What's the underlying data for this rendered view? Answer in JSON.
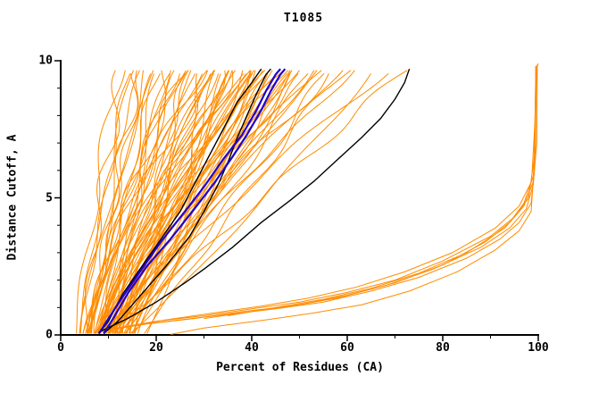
{
  "chart_data": {
    "type": "line",
    "title": "T1085",
    "xlabel": "Percent of Residues (CA)",
    "ylabel": "Distance Cutoff, A",
    "xlim": [
      0,
      100
    ],
    "ylim": [
      0,
      10
    ],
    "grid": false,
    "legend": "none",
    "x_tick_values": [
      0,
      20,
      40,
      60,
      80,
      100
    ],
    "x_tick_labels": [
      "0",
      "20",
      "40",
      "60",
      "80",
      "100"
    ],
    "y_tick_values": [
      0,
      5,
      10
    ],
    "y_tick_labels": [
      "0",
      "5",
      "10"
    ],
    "colors": {
      "predictions": "#ff8c00",
      "reference": "#000000",
      "highlight": "#2200cc",
      "axis": "#000000"
    },
    "orange_param_curves": [
      [
        4,
        14,
        1.0
      ],
      [
        5,
        16,
        0.9
      ],
      [
        6,
        18,
        1.1
      ],
      [
        4,
        20,
        1.3
      ],
      [
        7,
        22,
        0.8
      ],
      [
        5,
        24,
        1.2
      ],
      [
        8,
        25,
        1.0
      ],
      [
        6,
        26,
        1.4
      ],
      [
        9,
        27,
        0.9
      ],
      [
        5,
        28,
        1.1
      ],
      [
        7,
        29,
        1.3
      ],
      [
        10,
        30,
        0.8
      ],
      [
        6,
        30,
        1.5
      ],
      [
        8,
        31,
        1.0
      ],
      [
        11,
        32,
        1.2
      ],
      [
        7,
        32,
        0.9
      ],
      [
        9,
        33,
        1.4
      ],
      [
        12,
        34,
        1.0
      ],
      [
        6,
        34,
        1.6
      ],
      [
        8,
        35,
        1.1
      ],
      [
        10,
        35,
        0.85
      ],
      [
        13,
        36,
        1.25
      ],
      [
        7,
        36,
        1.0
      ],
      [
        9,
        37,
        1.45
      ],
      [
        11,
        37,
        0.9
      ],
      [
        14,
        38,
        1.15
      ],
      [
        8,
        38,
        1.3
      ],
      [
        10,
        39,
        1.0
      ],
      [
        12,
        39,
        0.8
      ],
      [
        6,
        40,
        1.5
      ],
      [
        9,
        40,
        1.1
      ],
      [
        11,
        41,
        1.35
      ],
      [
        13,
        41,
        0.95
      ],
      [
        7,
        42,
        1.2
      ],
      [
        10,
        42,
        1.0
      ],
      [
        15,
        43,
        0.85
      ],
      [
        8,
        43,
        1.4
      ],
      [
        12,
        44,
        1.1
      ],
      [
        9,
        44,
        1.6
      ],
      [
        11,
        45,
        0.9
      ],
      [
        14,
        45,
        1.2
      ],
      [
        7,
        46,
        1.05
      ],
      [
        10,
        46,
        1.35
      ],
      [
        12,
        47,
        0.95
      ],
      [
        8,
        47,
        1.25
      ],
      [
        16,
        48,
        1.1
      ],
      [
        9,
        48,
        0.8
      ],
      [
        11,
        49,
        1.45
      ],
      [
        13,
        50,
        1.0
      ],
      [
        10,
        50,
        1.3
      ],
      [
        8,
        51,
        1.15
      ],
      [
        12,
        52,
        0.9
      ],
      [
        15,
        53,
        1.25
      ],
      [
        9,
        54,
        1.05
      ],
      [
        11,
        55,
        1.4
      ],
      [
        13,
        56,
        0.95
      ],
      [
        10,
        57,
        1.2
      ],
      [
        17,
        58,
        1.0
      ],
      [
        12,
        60,
        1.3
      ],
      [
        9,
        62,
        1.1
      ],
      [
        14,
        65,
        0.9
      ],
      [
        11,
        68,
        1.2
      ],
      [
        10,
        72,
        1.0
      ],
      [
        3,
        12,
        1.1
      ],
      [
        4,
        17,
        1.4
      ],
      [
        5,
        21,
        0.75
      ],
      [
        6,
        23,
        1.2
      ],
      [
        18,
        40,
        1.0
      ],
      [
        16,
        36,
        1.3
      ],
      [
        15,
        33,
        0.9
      ],
      [
        14,
        30,
        1.1
      ],
      [
        13,
        28,
        1.5
      ],
      [
        12,
        26,
        0.85
      ],
      [
        11,
        24,
        1.2
      ],
      [
        10,
        22,
        1.0
      ],
      [
        9,
        20,
        1.35
      ],
      [
        8,
        19,
        0.95
      ],
      [
        7,
        17,
        1.15
      ],
      [
        6,
        15,
        1.0
      ],
      [
        5,
        13,
        1.25
      ]
    ],
    "orange_point_curves": [
      [
        [
          8,
          0.1
        ],
        [
          15,
          0.35
        ],
        [
          25,
          0.55
        ],
        [
          35,
          0.75
        ],
        [
          45,
          0.95
        ],
        [
          55,
          1.2
        ],
        [
          65,
          1.6
        ],
        [
          75,
          2.1
        ],
        [
          85,
          2.8
        ],
        [
          92,
          3.5
        ],
        [
          96,
          4.1
        ],
        [
          98.5,
          4.8
        ],
        [
          99.2,
          6.0
        ],
        [
          99.4,
          8.0
        ],
        [
          99.5,
          9.8
        ]
      ],
      [
        [
          9,
          0.15
        ],
        [
          18,
          0.4
        ],
        [
          28,
          0.6
        ],
        [
          38,
          0.85
        ],
        [
          48,
          1.05
        ],
        [
          58,
          1.35
        ],
        [
          68,
          1.8
        ],
        [
          78,
          2.4
        ],
        [
          88,
          3.2
        ],
        [
          94,
          3.9
        ],
        [
          97.5,
          4.6
        ],
        [
          99,
          5.5
        ],
        [
          99.3,
          7.5
        ],
        [
          99.5,
          9.8
        ]
      ],
      [
        [
          10,
          0.2
        ],
        [
          20,
          0.5
        ],
        [
          30,
          0.7
        ],
        [
          40,
          0.95
        ],
        [
          50,
          1.2
        ],
        [
          60,
          1.55
        ],
        [
          70,
          2.0
        ],
        [
          80,
          2.7
        ],
        [
          90,
          3.6
        ],
        [
          95,
          4.3
        ],
        [
          98,
          5.0
        ],
        [
          99.2,
          6.5
        ],
        [
          99.5,
          9.8
        ]
      ],
      [
        [
          12,
          0.25
        ],
        [
          22,
          0.55
        ],
        [
          32,
          0.8
        ],
        [
          42,
          1.05
        ],
        [
          52,
          1.35
        ],
        [
          62,
          1.75
        ],
        [
          72,
          2.3
        ],
        [
          82,
          3.0
        ],
        [
          91,
          3.9
        ],
        [
          96,
          4.7
        ],
        [
          98.6,
          5.6
        ],
        [
          99.3,
          7.8
        ],
        [
          99.6,
          9.8
        ]
      ],
      [
        [
          23,
          0.02
        ],
        [
          30,
          0.25
        ],
        [
          43,
          0.55
        ],
        [
          53,
          0.8
        ],
        [
          63,
          1.1
        ],
        [
          73,
          1.6
        ],
        [
          83,
          2.3
        ],
        [
          91,
          3.1
        ],
        [
          96,
          3.8
        ],
        [
          98.5,
          4.5
        ],
        [
          99.4,
          6.8
        ],
        [
          99.6,
          9.8
        ]
      ],
      [
        [
          30,
          0.6
        ],
        [
          40,
          0.85
        ],
        [
          50,
          1.1
        ],
        [
          60,
          1.45
        ],
        [
          70,
          1.9
        ],
        [
          80,
          2.55
        ],
        [
          89,
          3.4
        ],
        [
          94,
          4.1
        ],
        [
          97,
          4.8
        ],
        [
          99,
          5.8
        ],
        [
          99.5,
          8.5
        ],
        [
          99.7,
          9.85
        ]
      ],
      [
        [
          35,
          0.7
        ],
        [
          45,
          1.0
        ],
        [
          55,
          1.3
        ],
        [
          65,
          1.7
        ],
        [
          75,
          2.25
        ],
        [
          85,
          3.0
        ],
        [
          93,
          3.9
        ],
        [
          97,
          4.7
        ],
        [
          99,
          5.6
        ],
        [
          99.7,
          7.0
        ],
        [
          99.8,
          9.8
        ],
        [
          100,
          9.9
        ]
      ]
    ],
    "black_curves": [
      [
        [
          8,
          0.05
        ],
        [
          10,
          0.5
        ],
        [
          13,
          1.5
        ],
        [
          17,
          2.5
        ],
        [
          21,
          3.5
        ],
        [
          25,
          4.5
        ],
        [
          28,
          5.5
        ],
        [
          31,
          6.5
        ],
        [
          34,
          7.5
        ],
        [
          37,
          8.5
        ],
        [
          40,
          9.2
        ],
        [
          42,
          9.7
        ]
      ],
      [
        [
          9,
          0.05
        ],
        [
          12,
          0.5
        ],
        [
          16,
          1.3
        ],
        [
          22,
          2.5
        ],
        [
          27,
          3.6
        ],
        [
          30,
          4.5
        ],
        [
          33,
          5.5
        ],
        [
          35,
          6.3
        ],
        [
          37,
          7.2
        ],
        [
          39,
          8.0
        ],
        [
          41,
          8.8
        ],
        [
          43,
          9.5
        ],
        [
          44,
          9.7
        ]
      ],
      [
        [
          8,
          0.1
        ],
        [
          14,
          0.6
        ],
        [
          20,
          1.2
        ],
        [
          26,
          1.9
        ],
        [
          30,
          2.4
        ],
        [
          36,
          3.2
        ],
        [
          42,
          4.1
        ],
        [
          48,
          4.9
        ],
        [
          53,
          5.6
        ],
        [
          58,
          6.4
        ],
        [
          63,
          7.2
        ],
        [
          67,
          7.9
        ],
        [
          70,
          8.6
        ],
        [
          72,
          9.2
        ],
        [
          73,
          9.7
        ]
      ]
    ],
    "blue_curves": [
      [
        [
          9,
          0.05
        ],
        [
          11,
          0.6
        ],
        [
          14,
          1.5
        ],
        [
          18,
          2.5
        ],
        [
          23,
          3.5
        ],
        [
          28,
          4.6
        ],
        [
          32,
          5.5
        ],
        [
          36,
          6.5
        ],
        [
          39,
          7.3
        ],
        [
          42,
          8.2
        ],
        [
          44,
          8.9
        ],
        [
          46,
          9.5
        ],
        [
          47,
          9.7
        ]
      ],
      [
        [
          8,
          0.05
        ],
        [
          10,
          0.6
        ],
        [
          13,
          1.4
        ],
        [
          17,
          2.4
        ],
        [
          21,
          3.4
        ],
        [
          26,
          4.5
        ],
        [
          30,
          5.4
        ],
        [
          34,
          6.4
        ],
        [
          38,
          7.3
        ],
        [
          41,
          8.2
        ],
        [
          43,
          8.9
        ],
        [
          45,
          9.5
        ],
        [
          46,
          9.7
        ]
      ]
    ]
  }
}
